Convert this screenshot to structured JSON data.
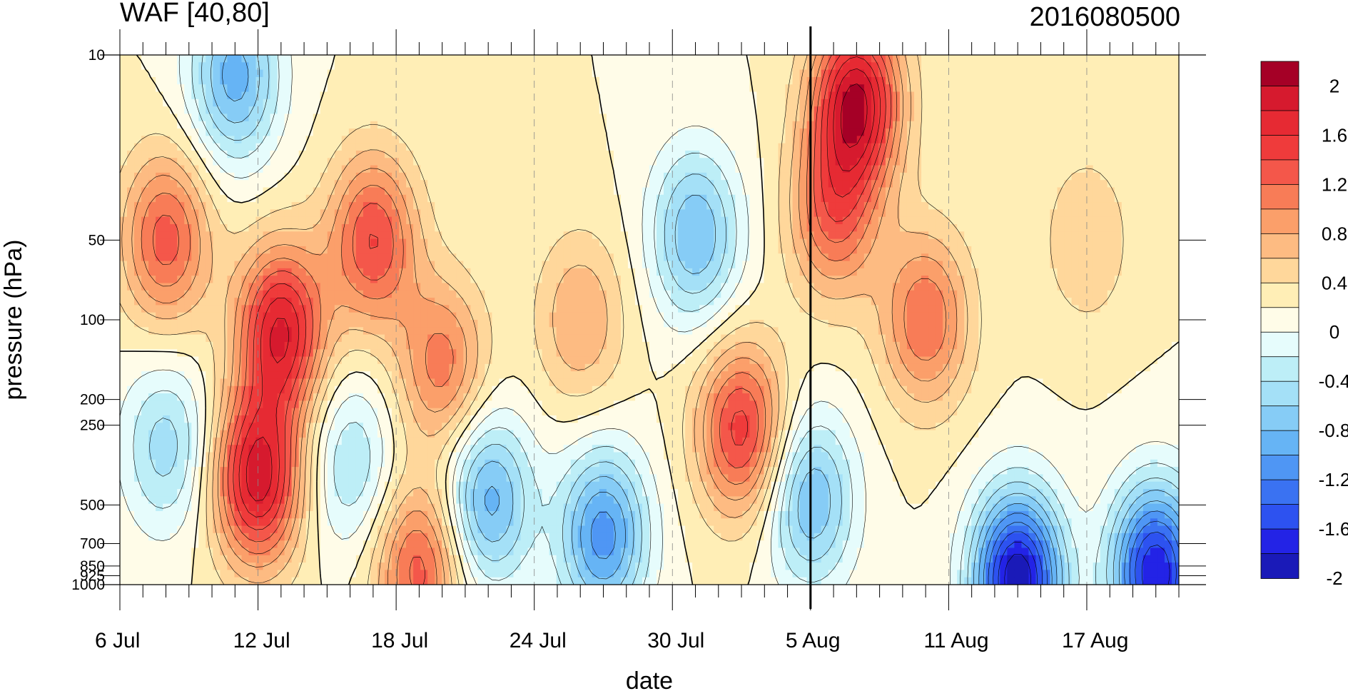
{
  "chart_data": {
    "type": "heatmap",
    "title": "WAF [40,80]",
    "subtitle": "2016080500",
    "xlabel": "date",
    "ylabel": "pressure (hPa)",
    "x_ticks": [
      "6 Jul",
      "12 Jul",
      "18 Jul",
      "24 Jul",
      "30 Jul",
      "5 Aug",
      "11 Aug",
      "17 Aug"
    ],
    "x_range": [
      "2016-07-06",
      "2016-08-21"
    ],
    "y_ticks": [
      10,
      50,
      100,
      200,
      250,
      500,
      700,
      850,
      925,
      1000
    ],
    "y_tick_labels": [
      "10",
      "50",
      "100",
      "200",
      "250",
      "500",
      "700",
      "850",
      "925",
      "1000"
    ],
    "y_scale": "log",
    "y_inverted": true,
    "highlight_date": "2016-08-05",
    "colorbar": {
      "labels": [
        "2",
        "1.6",
        "1.2",
        "0.8",
        "0.4",
        "0",
        "-0.4",
        "-0.8",
        "-1.2",
        "-1.6",
        "-2"
      ],
      "levels": [
        -2.2,
        -2.0,
        -1.8,
        -1.6,
        -1.4,
        -1.2,
        -1.0,
        -0.8,
        -0.6,
        -0.4,
        -0.2,
        0.0,
        0.2,
        0.4,
        0.6,
        0.8,
        1.0,
        1.2,
        1.4,
        1.6,
        1.8,
        2.0,
        2.2
      ],
      "colors": [
        "#1a1ab8",
        "#2323e6",
        "#2d52f0",
        "#3a72f2",
        "#4f96f4",
        "#66b4f5",
        "#86ccf6",
        "#a4e0f7",
        "#bdeef7",
        "#e6fcfc",
        "#fffce8",
        "#ffeeb6",
        "#ffd79b",
        "#fdbb82",
        "#fb9f6a",
        "#f87c57",
        "#f4574a",
        "#ef3b3b",
        "#e62a33",
        "#d61a2e",
        "#a50026"
      ]
    },
    "features": [
      {
        "date": "2016-07-12",
        "pressure": 400,
        "value": 1.7
      },
      {
        "date": "2016-07-13",
        "pressure": 110,
        "value": 1.6
      },
      {
        "date": "2016-07-08",
        "pressure": 50,
        "value": 1.1
      },
      {
        "date": "2016-07-17",
        "pressure": 50,
        "value": 1.2
      },
      {
        "date": "2016-08-07",
        "pressure": 15,
        "value": 1.8
      },
      {
        "date": "2016-08-06",
        "pressure": 40,
        "value": 1.0
      },
      {
        "date": "2016-08-02",
        "pressure": 260,
        "value": 1.3
      },
      {
        "date": "2016-07-20",
        "pressure": 150,
        "value": 0.9
      },
      {
        "date": "2016-08-10",
        "pressure": 100,
        "value": 1.0
      },
      {
        "date": "2016-07-19",
        "pressure": 880,
        "value": 1.1
      },
      {
        "date": "2016-07-26",
        "pressure": 100,
        "value": 0.6
      },
      {
        "date": "2016-08-17",
        "pressure": 50,
        "value": 0.4
      },
      {
        "date": "2016-07-31",
        "pressure": 48,
        "value": -1.0
      },
      {
        "date": "2016-07-11",
        "pressure": 12,
        "value": -1.1
      },
      {
        "date": "2016-07-27",
        "pressure": 650,
        "value": -1.3
      },
      {
        "date": "2016-07-22",
        "pressure": 480,
        "value": -1.1
      },
      {
        "date": "2016-08-14",
        "pressure": 960,
        "value": -2.2
      },
      {
        "date": "2016-08-20",
        "pressure": 900,
        "value": -2.0
      },
      {
        "date": "2016-08-05",
        "pressure": 480,
        "value": -1.0
      },
      {
        "date": "2016-07-08",
        "pressure": 300,
        "value": -0.7
      },
      {
        "date": "2016-07-16",
        "pressure": 350,
        "value": -0.6
      }
    ]
  }
}
